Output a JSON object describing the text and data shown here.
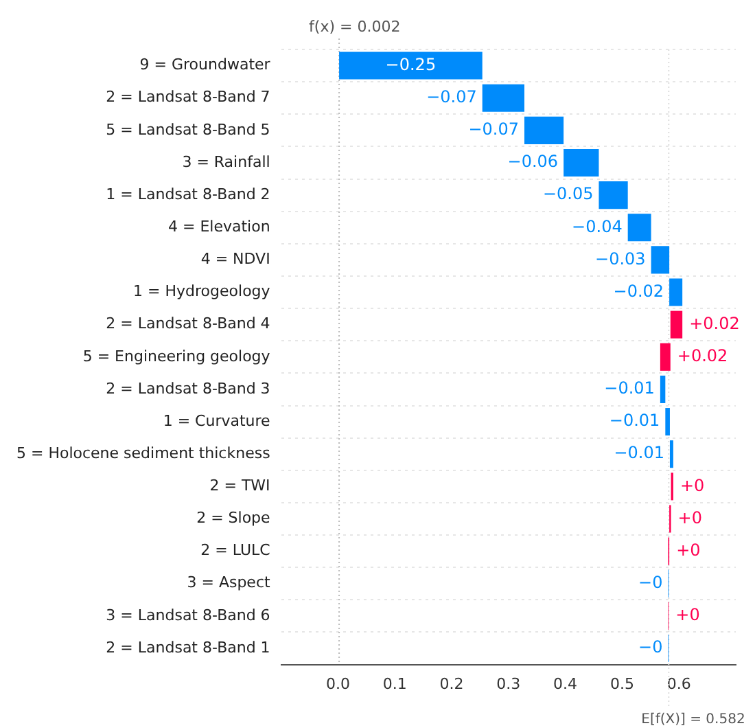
{
  "chart_data": {
    "type": "bar",
    "orientation": "horizontal",
    "legend": false,
    "grid": "y",
    "categories": [
      "9 = Groundwater",
      "2 = Landsat 8-Band 7",
      "5 = Landsat 8-Band 5",
      "3 = Rainfall",
      "1 = Landsat 8-Band 2",
      "4 = Elevation",
      "4 = NDVI",
      "1 = Hydrogeology",
      "2 = Landsat 8-Band 4",
      "5 = Engineering geology",
      "2 = Landsat 8-Band 3",
      "1 = Curvature",
      "5 = Holocene sediment thickness",
      "2 = TWI",
      "2 = Slope",
      "2 = LULC",
      "3 = Aspect",
      "3 = Landsat 8-Band 6",
      "2 = Landsat 8-Band 1"
    ],
    "base": [
      0.254,
      0.328,
      0.397,
      0.459,
      0.51,
      0.551,
      0.583,
      0.606,
      0.585,
      0.567,
      0.576,
      0.584,
      0.59,
      0.586,
      0.583,
      0.581,
      0.582,
      0.581,
      0.582
    ],
    "values": [
      -0.252,
      -0.074,
      -0.069,
      -0.062,
      -0.051,
      -0.041,
      -0.032,
      -0.023,
      0.021,
      0.018,
      -0.009,
      -0.008,
      -0.006,
      0.004,
      0.003,
      0.002,
      -0.001,
      0.001,
      -0.001
    ],
    "value_labels": [
      "−0.25",
      "−0.07",
      "−0.07",
      "−0.06",
      "−0.05",
      "−0.04",
      "−0.03",
      "−0.02",
      "+0.02",
      "+0.02",
      "−0.01",
      "−0.01",
      "−0.01",
      "+0",
      "+0",
      "+0",
      "−0",
      "+0",
      "−0"
    ],
    "colors": [
      "#008bfb",
      "#008bfb",
      "#008bfb",
      "#008bfb",
      "#008bfb",
      "#008bfb",
      "#008bfb",
      "#008bfb",
      "#ff0051",
      "#ff0051",
      "#008bfb",
      "#008bfb",
      "#008bfb",
      "#ff0051",
      "#ff0051",
      "#ff0051",
      "#008bfb",
      "#ff0051",
      "#008bfb"
    ],
    "xlim": [
      -0.1,
      0.7
    ],
    "xticks": [
      {
        "value": 0,
        "label": "0.0"
      },
      {
        "value": 0.1,
        "label": "0.1"
      },
      {
        "value": 0.2,
        "label": "0.2"
      },
      {
        "value": 0.3,
        "label": "0.3"
      },
      {
        "value": 0.4,
        "label": "0.4"
      },
      {
        "value": 0.5,
        "label": "0.5"
      },
      {
        "value": 0.6,
        "label": "0.6"
      }
    ],
    "ref_lines": [
      {
        "axis": "x",
        "value": 0.002,
        "label": "f(x) = 0.002",
        "color": "#bbbbbb",
        "line_style": "dotted"
      },
      {
        "axis": "x",
        "value": 0.582,
        "label": "E[f(X)] = 0.582",
        "color": "#dddddd",
        "line_style": "dotted"
      }
    ]
  }
}
